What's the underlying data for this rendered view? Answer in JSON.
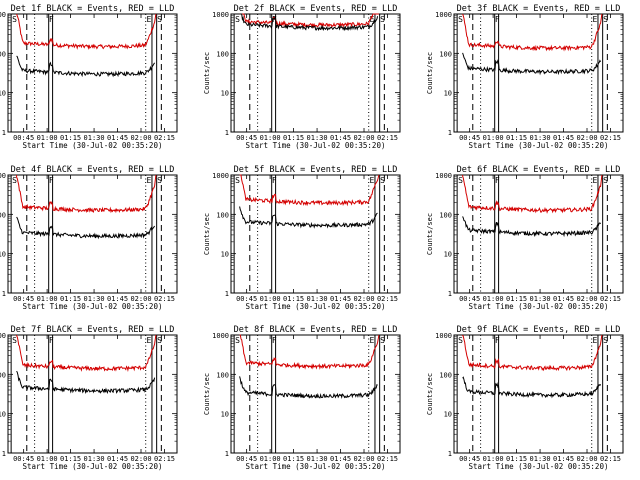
{
  "chart_data": {
    "type": "line",
    "layout": "3x3 grid",
    "yscale": "log",
    "ylim": [
      1,
      1000
    ],
    "ylabel": "Counts/sec",
    "y_tick_labels": [
      "1",
      "10",
      "100",
      "1000"
    ],
    "x_tick_labels": [
      "00:45",
      "01:00",
      "01:15",
      "01:30",
      "01:45",
      "02:00",
      "02:15"
    ],
    "xlabel": "Start Time (30-Jul-02 00:35:20)",
    "x_range_minutes_after_start": [
      0,
      108
    ],
    "series_legend": {
      "black": "Events",
      "red": "LLD"
    },
    "panels": [
      {
        "title": "Det 1f BLACK = Events, RED = LLD",
        "events_level": 35,
        "lld_level": 175
      },
      {
        "title": "Det 2f BLACK = Events, RED = LLD",
        "events_level": 520,
        "lld_level": 620
      },
      {
        "title": "Det 3f BLACK = Events, RED = LLD",
        "events_level": 40,
        "lld_level": 160
      },
      {
        "title": "Det 4f BLACK = Events, RED = LLD",
        "events_level": 33,
        "lld_level": 150
      },
      {
        "title": "Det 5f BLACK = Events, RED = LLD",
        "events_level": 62,
        "lld_level": 230
      },
      {
        "title": "Det 6f BLACK = Events, RED = LLD",
        "events_level": 38,
        "lld_level": 150
      },
      {
        "title": "Det 7f BLACK = Events, RED = LLD",
        "events_level": 45,
        "lld_level": 165
      },
      {
        "title": "Det 8f BLACK = Events, RED = LLD",
        "events_level": 33,
        "lld_level": 190
      },
      {
        "title": "Det 9f BLACK = Events, RED = LLD",
        "events_level": 35,
        "lld_level": 170
      }
    ],
    "markers": {
      "start": "S",
      "flare": "F",
      "end": "E"
    }
  }
}
